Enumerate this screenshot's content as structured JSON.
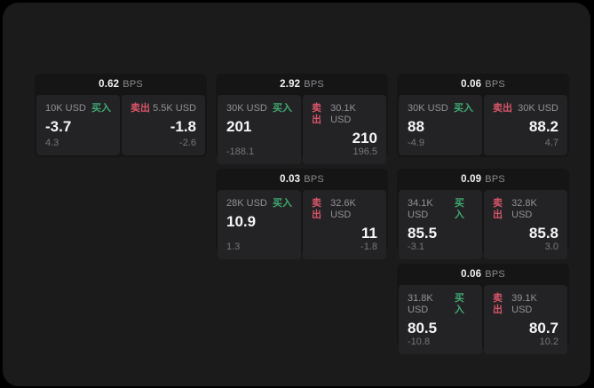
{
  "labels": {
    "bps": "BPS",
    "buy": "买入",
    "sell": "卖出"
  },
  "colors": {
    "background": "#000000",
    "panel": "#1b1b1c",
    "card": "#151516",
    "subpanel": "#232325",
    "buy_green": "#3fa971",
    "sell_red": "#d75568",
    "text_primary": "#f5f5f6",
    "text_muted": "#929295",
    "text_dim": "#77777a"
  },
  "cards": [
    {
      "grid": {
        "row": "1",
        "col": "1"
      },
      "bps": "0.62",
      "buy": {
        "size": "10K USD",
        "price": "-3.7",
        "delta": "4.3"
      },
      "sell": {
        "size": "5.5K USD",
        "price": "-1.8",
        "delta": "-2.6"
      }
    },
    {
      "grid": {
        "row": "1",
        "col": "2"
      },
      "bps": "2.92",
      "buy": {
        "size": "30K USD",
        "price": "201",
        "delta": "-188.1"
      },
      "sell": {
        "size": "30.1K USD",
        "price": "210",
        "delta": "196.5"
      }
    },
    {
      "grid": {
        "row": "1",
        "col": "3"
      },
      "bps": "0.06",
      "buy": {
        "size": "30K USD",
        "price": "88",
        "delta": "-4.9"
      },
      "sell": {
        "size": "30K USD",
        "price": "88.2",
        "delta": "4.7"
      }
    },
    {
      "grid": {
        "row": "2",
        "col": "2"
      },
      "bps": "0.03",
      "buy": {
        "size": "28K USD",
        "price": "10.9",
        "delta": "1.3"
      },
      "sell": {
        "size": "32.6K USD",
        "price": "11",
        "delta": "-1.8"
      }
    },
    {
      "grid": {
        "row": "2",
        "col": "3"
      },
      "bps": "0.09",
      "buy": {
        "size": "34.1K USD",
        "price": "85.5",
        "delta": "-3.1"
      },
      "sell": {
        "size": "32.8K USD",
        "price": "85.8",
        "delta": "3.0"
      }
    },
    {
      "grid": {
        "row": "3",
        "col": "3"
      },
      "bps": "0.06",
      "buy": {
        "size": "31.8K USD",
        "price": "80.5",
        "delta": "-10.8"
      },
      "sell": {
        "size": "39.1K USD",
        "price": "80.7",
        "delta": "10.2"
      }
    }
  ]
}
